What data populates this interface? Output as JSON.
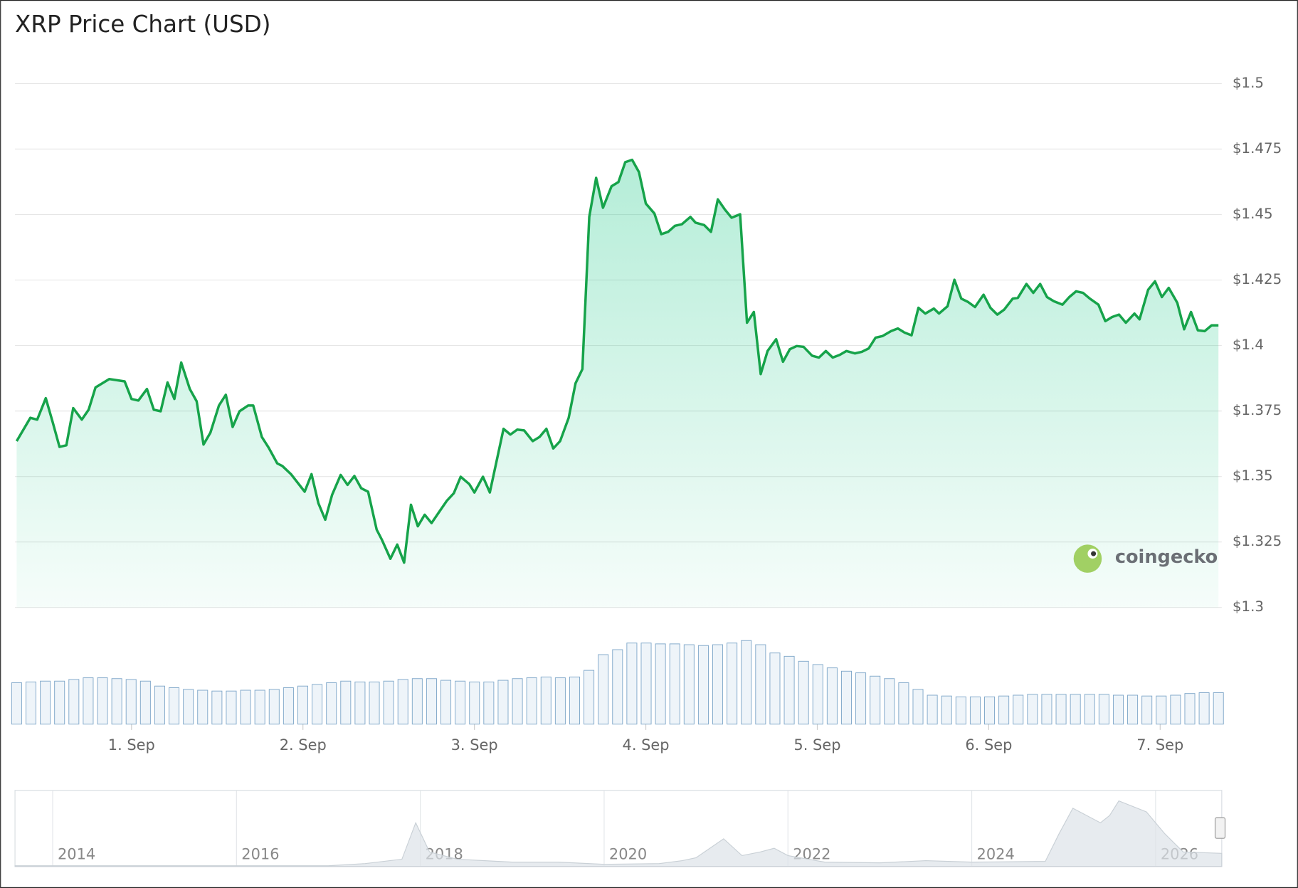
{
  "chart_data": {
    "type": "line",
    "title": "XRP Price Chart (USD)",
    "color": "#16a34a",
    "x": [
      0.33,
      0.41,
      0.45,
      0.5,
      0.54,
      0.58,
      0.62,
      0.66,
      0.71,
      0.75,
      0.79,
      0.87,
      0.96,
      1.0,
      1.04,
      1.09,
      1.13,
      1.17,
      1.21,
      1.25,
      1.29,
      1.34,
      1.38,
      1.42,
      1.46,
      1.51,
      1.55,
      1.59,
      1.63,
      1.68,
      1.71,
      1.76,
      1.8,
      1.85,
      1.88,
      1.93,
      2.01,
      2.05,
      2.09,
      2.13,
      2.17,
      2.22,
      2.26,
      2.3,
      2.34,
      2.38,
      2.43,
      2.46,
      2.51,
      2.55,
      2.59,
      2.63,
      2.67,
      2.71,
      2.75,
      2.8,
      2.84,
      2.88,
      2.92,
      2.97,
      3.0,
      3.05,
      3.09,
      3.17,
      3.21,
      3.25,
      3.29,
      3.34,
      3.38,
      3.42,
      3.46,
      3.5,
      3.55,
      3.59,
      3.63,
      3.67,
      3.71,
      3.75,
      3.8,
      3.84,
      3.88,
      3.92,
      3.96,
      4.0,
      4.05,
      4.09,
      4.13,
      4.17,
      4.21,
      4.26,
      4.29,
      4.34,
      4.38,
      4.42,
      4.46,
      4.5,
      4.55,
      4.59,
      4.63,
      4.67,
      4.71,
      4.76,
      4.8,
      4.84,
      4.88,
      4.92,
      4.97,
      5.01,
      5.05,
      5.09,
      5.13,
      5.17,
      5.22,
      5.26,
      5.3,
      5.34,
      5.38,
      5.43,
      5.47,
      5.51,
      5.55,
      5.59,
      5.63,
      5.68,
      5.71,
      5.76,
      5.8,
      5.84,
      5.88,
      5.92,
      5.97,
      6.01,
      6.05,
      6.09,
      6.14,
      6.17,
      6.22,
      6.26,
      6.3,
      6.34,
      6.38,
      6.43,
      6.47,
      6.51,
      6.55,
      6.59,
      6.64,
      6.68,
      6.72,
      6.76,
      6.8,
      6.85,
      6.88,
      6.93,
      6.97,
      7.01,
      7.05,
      7.1,
      7.14,
      7.18,
      7.22,
      7.26,
      7.3,
      7.34
    ],
    "values": [
      1.3635,
      1.3724,
      1.3717,
      1.3799,
      1.3708,
      1.3613,
      1.3619,
      1.3761,
      1.3717,
      1.3755,
      1.384,
      1.3872,
      1.3863,
      1.3796,
      1.379,
      1.3834,
      1.3755,
      1.3749,
      1.3859,
      1.3796,
      1.3935,
      1.3834,
      1.3787,
      1.3622,
      1.3667,
      1.3771,
      1.3812,
      1.3689,
      1.3749,
      1.3771,
      1.3771,
      1.3651,
      1.361,
      1.355,
      1.354,
      1.3509,
      1.3442,
      1.3509,
      1.3398,
      1.3335,
      1.343,
      1.3506,
      1.3468,
      1.3502,
      1.3455,
      1.3442,
      1.3297,
      1.3259,
      1.3186,
      1.324,
      1.3171,
      1.3392,
      1.331,
      1.3354,
      1.3322,
      1.337,
      1.3408,
      1.3436,
      1.3499,
      1.3471,
      1.3439,
      1.3499,
      1.3439,
      1.3682,
      1.366,
      1.3679,
      1.3676,
      1.3635,
      1.3651,
      1.3682,
      1.3607,
      1.3635,
      1.3724,
      1.3856,
      1.391,
      1.4491,
      1.464,
      1.4526,
      1.4608,
      1.4624,
      1.47,
      1.4709,
      1.4662,
      1.4542,
      1.4504,
      1.4425,
      1.4434,
      1.4457,
      1.4463,
      1.4491,
      1.4469,
      1.446,
      1.4434,
      1.4558,
      1.452,
      1.4488,
      1.4501,
      1.4087,
      1.4128,
      1.3891,
      1.3979,
      1.4024,
      1.3938,
      1.3986,
      1.3998,
      1.3995,
      1.3961,
      1.3954,
      1.3979,
      1.3954,
      1.3964,
      1.3979,
      1.397,
      1.3976,
      1.3989,
      1.403,
      1.4036,
      1.4055,
      1.4065,
      1.4049,
      1.4039,
      1.4144,
      1.4122,
      1.4141,
      1.4122,
      1.415,
      1.4251,
      1.4179,
      1.4166,
      1.4147,
      1.4194,
      1.4144,
      1.4118,
      1.4137,
      1.4179,
      1.4182,
      1.4235,
      1.4201,
      1.4235,
      1.4185,
      1.4169,
      1.4156,
      1.4185,
      1.4207,
      1.4201,
      1.4179,
      1.4156,
      1.4093,
      1.4109,
      1.4118,
      1.4087,
      1.4122,
      1.41,
      1.4213,
      1.4245,
      1.4185,
      1.422,
      1.4163,
      1.4062,
      1.4128,
      1.4058,
      1.4055,
      1.4077,
      1.4077
    ],
    "xlim": [
      0.33,
      7.34
    ],
    "xticks": [
      {
        "value": 1,
        "label": "1. Sep"
      },
      {
        "value": 2,
        "label": "2. Sep"
      },
      {
        "value": 3,
        "label": "3. Sep"
      },
      {
        "value": 4,
        "label": "4. Sep"
      },
      {
        "value": 5,
        "label": "5. Sep"
      },
      {
        "value": 6,
        "label": "6. Sep"
      },
      {
        "value": 7,
        "label": "7. Sep"
      }
    ],
    "ylim": [
      1.3,
      1.5
    ],
    "yticks": [
      {
        "value": 1.3,
        "label": "$1.3"
      },
      {
        "value": 1.325,
        "label": "$1.325"
      },
      {
        "value": 1.35,
        "label": "$1.35"
      },
      {
        "value": 1.375,
        "label": "$1.375"
      },
      {
        "value": 1.4,
        "label": "$1.4"
      },
      {
        "value": 1.425,
        "label": "$1.425"
      },
      {
        "value": 1.45,
        "label": "$1.45"
      },
      {
        "value": 1.475,
        "label": "$1.475"
      },
      {
        "value": 1.5,
        "label": "$1.5"
      }
    ],
    "grid": true,
    "volume": {
      "color": "#7fa7c9",
      "ylim": [
        0,
        110
      ],
      "values": [
        50,
        51,
        52,
        52,
        54,
        56,
        56,
        55,
        54,
        52,
        46,
        44,
        42,
        41,
        40,
        40,
        41,
        41,
        42,
        44,
        46,
        48,
        50,
        52,
        51,
        51,
        52,
        54,
        55,
        55,
        53,
        52,
        51,
        51,
        53,
        55,
        56,
        57,
        56,
        57,
        65,
        84,
        90,
        98,
        98,
        97,
        97,
        96,
        95,
        96,
        98,
        101,
        96,
        86,
        82,
        76,
        72,
        68,
        64,
        62,
        58,
        55,
        50,
        42,
        35,
        34,
        33,
        33,
        33,
        34,
        35,
        36,
        36,
        36,
        36,
        36,
        36,
        35,
        35,
        34,
        34,
        35,
        37,
        38,
        38
      ]
    },
    "navigator": {
      "color": "#dde3e8",
      "xlim": [
        2013.59,
        2026.72
      ],
      "ylim": [
        0,
        100
      ],
      "xticks": [
        2014,
        2016,
        2018,
        2020,
        2022,
        2024,
        2026
      ],
      "x": [
        2013.59,
        2017.0,
        2017.4,
        2017.8,
        2017.95,
        2018.1,
        2018.4,
        2019.0,
        2019.5,
        2020.0,
        2020.6,
        2020.85,
        2021.0,
        2021.3,
        2021.5,
        2021.7,
        2021.85,
        2022.0,
        2022.4,
        2023.0,
        2023.5,
        2024.0,
        2024.8,
        2024.95,
        2025.1,
        2025.4,
        2025.5,
        2025.6,
        2025.9,
        2026.1,
        2026.3,
        2026.72
      ],
      "values": [
        1,
        1,
        4,
        10,
        60,
        20,
        10,
        6,
        6,
        3,
        4,
        8,
        12,
        38,
        15,
        20,
        25,
        15,
        6,
        5,
        8,
        6,
        7,
        45,
        80,
        60,
        70,
        90,
        75,
        45,
        20,
        18
      ]
    },
    "watermark": "coingecko"
  }
}
